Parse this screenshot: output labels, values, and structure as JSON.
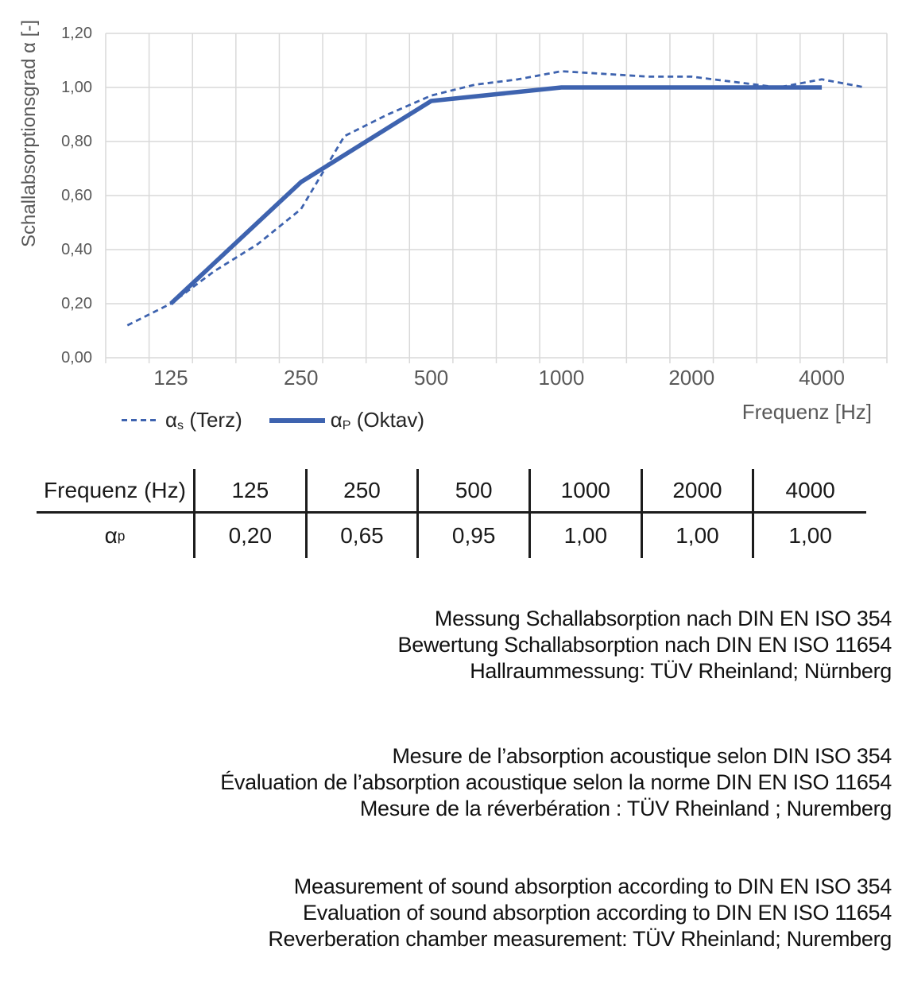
{
  "chart": {
    "y_axis_title": "Schallabsorptionsgrad α [-]",
    "x_axis_title": "Frequenz [Hz]",
    "legend": [
      {
        "prefix": "α",
        "sub": "s",
        "rest": " (Terz)",
        "style": "dashed"
      },
      {
        "prefix": "α",
        "sub": "P",
        "rest": " (Oktav)",
        "style": "solid"
      }
    ]
  },
  "chart_data": {
    "type": "line",
    "x_categories": [
      "100",
      "125",
      "160",
      "200",
      "250",
      "315",
      "400",
      "500",
      "630",
      "800",
      "1000",
      "1250",
      "1600",
      "2000",
      "2500",
      "3150",
      "4000",
      "5000"
    ],
    "series": [
      {
        "name": "αs (Terz)",
        "style": "dashed",
        "values": [
          0.12,
          0.2,
          0.32,
          0.42,
          0.55,
          0.82,
          0.9,
          0.97,
          1.01,
          1.03,
          1.06,
          1.05,
          1.04,
          1.04,
          1.02,
          1.0,
          1.03,
          1.0
        ]
      },
      {
        "name": "αP (Oktav)",
        "style": "solid",
        "x_indices": [
          1,
          4,
          7,
          10,
          13,
          16
        ],
        "values": [
          0.2,
          0.65,
          0.95,
          1.0,
          1.0,
          1.0
        ]
      }
    ],
    "title": "",
    "xlabel": "Frequenz [Hz]",
    "ylabel": "Schallabsorptionsgrad α [-]",
    "ylim": [
      0,
      1.2
    ],
    "y_ticks": [
      "0,00",
      "0,20",
      "0,40",
      "0,60",
      "0,80",
      "1,00",
      "1,20"
    ],
    "x_ticks": [
      {
        "label": "125",
        "index": 1
      },
      {
        "label": "250",
        "index": 4
      },
      {
        "label": "500",
        "index": 7
      },
      {
        "label": "1000",
        "index": 10
      },
      {
        "label": "2000",
        "index": 13
      },
      {
        "label": "4000",
        "index": 16
      }
    ],
    "grid": true,
    "legend_position": "bottom-left"
  },
  "table": {
    "headers": [
      "Frequenz (Hz)",
      "125",
      "250",
      "500",
      "1000",
      "2000",
      "4000"
    ],
    "row_label": {
      "prefix": "α",
      "sub": "p"
    },
    "values": [
      "0,20",
      "0,65",
      "0,95",
      "1,00",
      "1,00",
      "1,00"
    ]
  },
  "notes": {
    "de": [
      "Messung Schallabsorption nach DIN EN ISO 354",
      "Bewertung Schallabsorption nach DIN EN ISO 11654",
      "Hallraummessung: TÜV Rheinland; Nürnberg"
    ],
    "fr": [
      "Mesure de l’absorption acoustique selon DIN ISO 354",
      "Évaluation de l’absorption acoustique selon la norme DIN EN ISO 11654",
      "Mesure de la réverbération : TÜV Rheinland ; Nuremberg"
    ],
    "en": [
      "Measurement of sound absorption according to DIN EN ISO 354",
      "Evaluation of sound absorption according to DIN EN ISO 11654",
      "Reverberation chamber measurement: TÜV Rheinland; Nuremberg"
    ]
  },
  "colors": {
    "line_blue": "#3E63AF",
    "grid": "#D9D9D9",
    "axis_text": "#595959",
    "text": "#1A1A1A"
  }
}
